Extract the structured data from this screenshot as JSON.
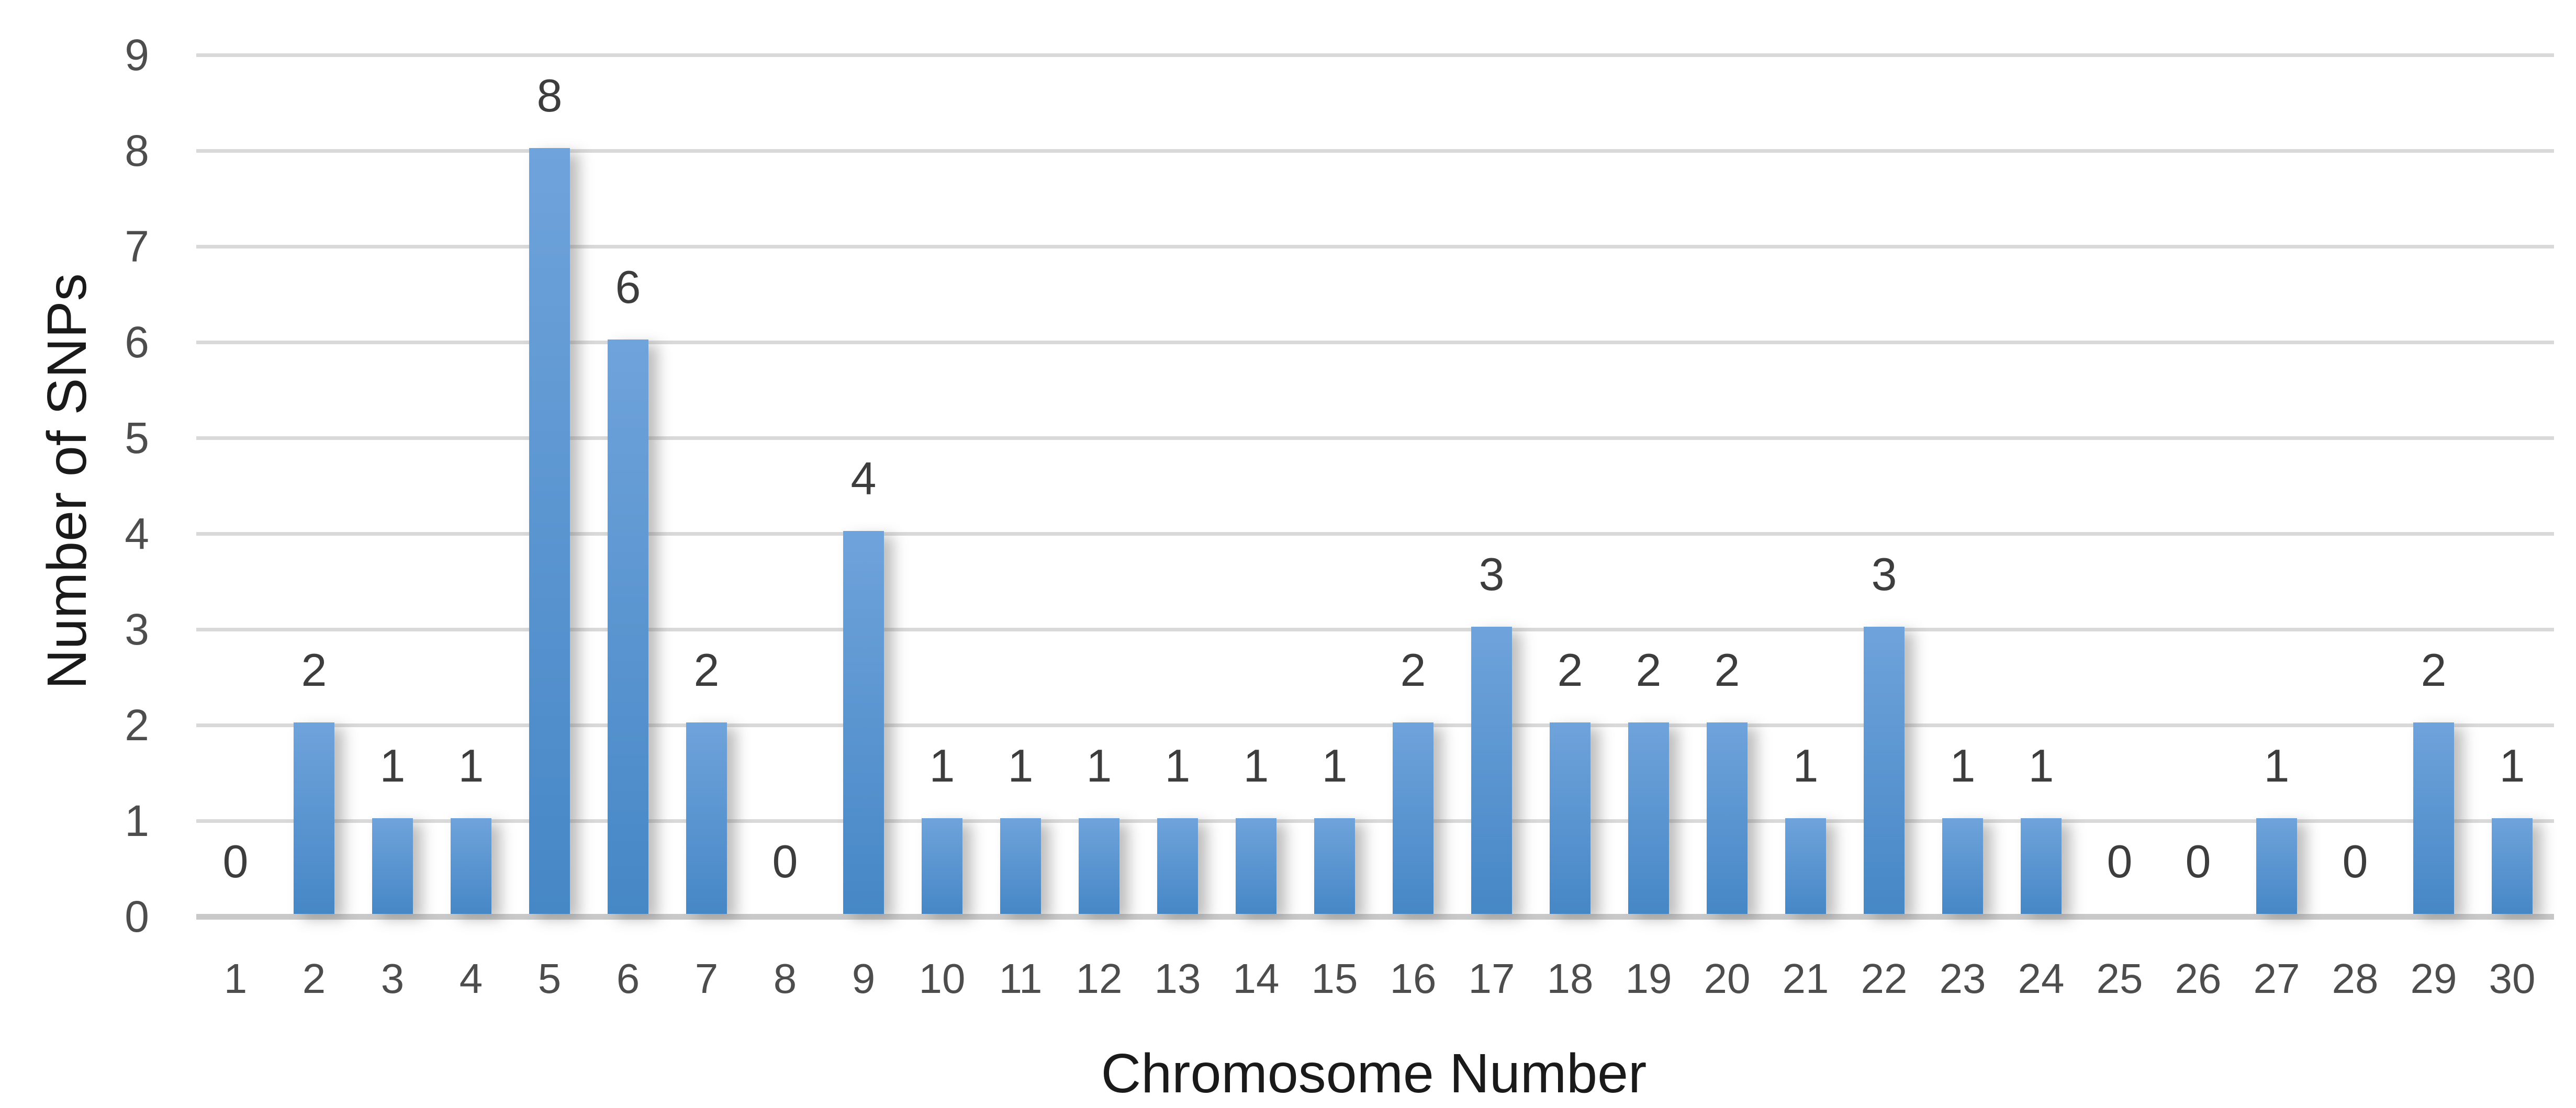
{
  "chart_data": {
    "type": "bar",
    "title": "",
    "categories": [
      "1",
      "2",
      "3",
      "4",
      "5",
      "6",
      "7",
      "8",
      "9",
      "10",
      "11",
      "12",
      "13",
      "14",
      "15",
      "16",
      "17",
      "18",
      "19",
      "20",
      "21",
      "22",
      "23",
      "24",
      "25",
      "26",
      "27",
      "28",
      "29",
      "30"
    ],
    "values": [
      0,
      2,
      1,
      1,
      8,
      6,
      2,
      0,
      4,
      1,
      1,
      1,
      1,
      1,
      1,
      2,
      3,
      2,
      2,
      2,
      1,
      3,
      1,
      1,
      0,
      0,
      1,
      0,
      2,
      1
    ],
    "series_name": "Number of SNPs",
    "xlabel": "Chromosome Number",
    "ylabel": "Number of SNPs",
    "ylim": [
      0,
      9
    ],
    "yticks": [
      "0",
      "1",
      "2",
      "3",
      "4",
      "5",
      "6",
      "7",
      "8",
      "9"
    ],
    "grid": true,
    "legend": "none",
    "data_labels": "outside-end"
  },
  "colors": {
    "background": "#FFFFFF",
    "bar_gradient_top": "#6FA3DB",
    "bar_gradient_bottom": "#4687C6",
    "bar_shadow": "rgba(110,110,110,0.45)",
    "gridline": "#D9D9D9",
    "axis_line": "#C9C9C9",
    "tick_label": "#4D4D4D",
    "data_label": "#3D3D3D",
    "axis_title": "#1A1A1A"
  }
}
